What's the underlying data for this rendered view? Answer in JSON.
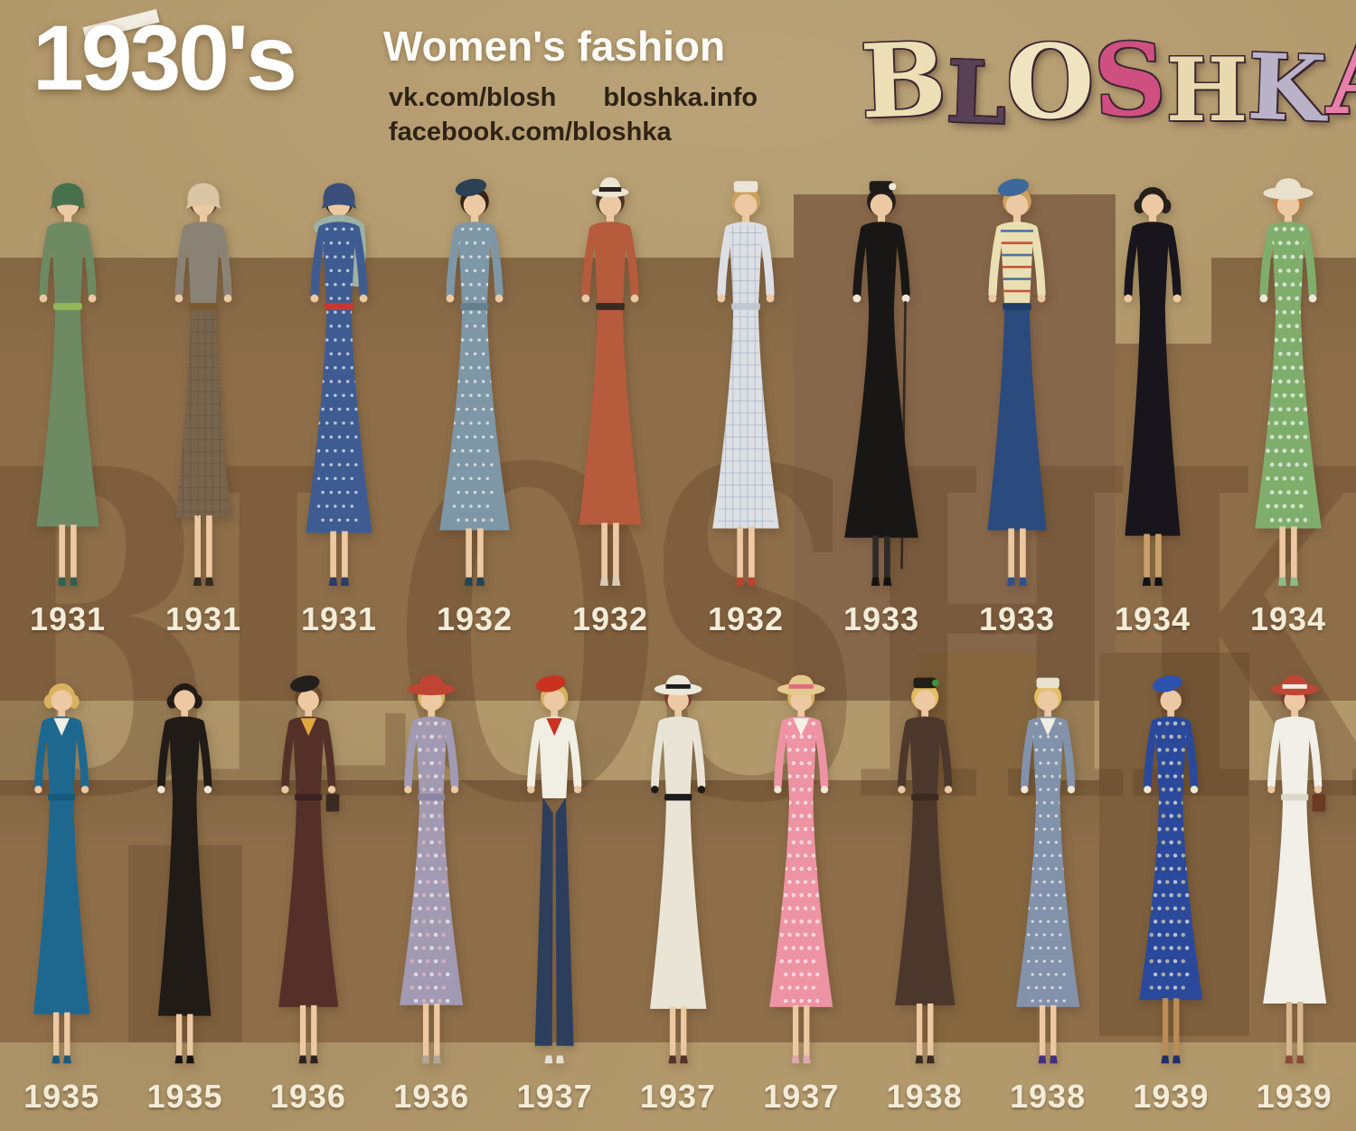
{
  "header": {
    "title": "1930's",
    "subtitle": "Women's fashion",
    "links": [
      "vk.com/blosh",
      "bloshka.info",
      "facebook.com/bloshka"
    ]
  },
  "brand": {
    "name": "BLOSHKA",
    "letters": [
      {
        "char": "B",
        "color": "#ecdfb6"
      },
      {
        "char": "L",
        "color": "#584055"
      },
      {
        "char": "O",
        "color": "#f0e3c0"
      },
      {
        "char": "S",
        "color": "#cf4f81"
      },
      {
        "char": "H",
        "color": "#e8d9ae"
      },
      {
        "char": "K",
        "color": "#b9b2c8"
      },
      {
        "char": "A",
        "color": "#e87fa8"
      }
    ]
  },
  "watermark": "BLOSHKA",
  "palette": {
    "paper_light": "#b2996c",
    "paper_band": "#8e6e49",
    "paper_patch_dark": "#7d5f3d",
    "label_text": "#f3ecd9",
    "link_text": "#2f2316",
    "title_text": "#ffffff"
  },
  "rows": [
    {
      "name": "years 1931-1934",
      "figures": [
        {
          "year": "1931",
          "desc": "green dress with flounce sleeves, green sash and cloche hat",
          "hat": "cloche",
          "type": "dress",
          "pattern": "none",
          "hem": 388,
          "flare": 34,
          "colors": {
            "hat": "#47704c",
            "hair": "#6b4a2c",
            "dress": "#6d8a62",
            "belt": "#92b75a",
            "shoes": "#33604f"
          }
        },
        {
          "year": "1931",
          "desc": "grey belted jacket with checked tweed skirt and beige cloche",
          "hat": "cloche",
          "type": "dress",
          "pattern": "check",
          "patternArea": "skirt",
          "hem": 378,
          "flare": 30,
          "colors": {
            "hat": "#d9c4a4",
            "hair": "#5a3c26",
            "top": "#8b8276",
            "dress": "#8b8276",
            "skirt": "#77644c",
            "accent": "#5c4c38",
            "belt": "#7b5a32",
            "shoes": "#352a20"
          }
        },
        {
          "year": "1931",
          "desc": "navy polka-dot dress with red belt and grey fur stole",
          "hat": "cloche",
          "type": "dress",
          "pattern": "dots",
          "hem": 395,
          "flare": 36,
          "colors": {
            "hat": "#3c4e7a",
            "hair": "#3a2c20",
            "dress": "#3e5c92",
            "belt": "#c9372c",
            "shoes": "#2c3a68",
            "stole": "#9cb2a4"
          }
        },
        {
          "year": "1932",
          "desc": "slate-blue ruffled polka-dot dress with tiered skirt and navy hat",
          "hat": "beret",
          "type": "dress",
          "pattern": "dots",
          "hem": 392,
          "flare": 38,
          "colors": {
            "hat": "#2c4054",
            "hair": "#352418",
            "dress": "#7e97a6",
            "belt": "#667f90",
            "shoes": "#214653"
          }
        },
        {
          "year": "1932",
          "desc": "rust tweed coat and skirt with white fedora",
          "hat": "fedora",
          "type": "dress",
          "pattern": "none",
          "hem": 386,
          "flare": 34,
          "colors": {
            "hat": "#eee6d4",
            "hatband": "#26211c",
            "hair": "#4a3424",
            "dress": "#b65c3d",
            "belt": "#3c2a20",
            "shoes": "#d8ccb8"
          }
        },
        {
          "year": "1932",
          "desc": "pale windowpane-check wrap dress with white cap and red shoes",
          "hat": "pillbox",
          "type": "dress",
          "pattern": "check",
          "hem": 390,
          "flare": 36,
          "colors": {
            "hat": "#eae5d7",
            "hair": "#caa05a",
            "dress": "#dcdfe3",
            "accent": "#8fa3c0",
            "belt": "#c2c8d2",
            "shoes": "#b8432f"
          }
        },
        {
          "year": "1933",
          "desc": "long black coat with fur trim, white gloves and walking cane",
          "hat": "pillbox",
          "type": "dress",
          "pattern": "none",
          "hem": 400,
          "flare": 40,
          "cane": true,
          "colors": {
            "hat": "#1d1b19",
            "hatAccent": "#efe8d8",
            "hair": "#241c16",
            "dress": "#191715",
            "shoes": "#141210",
            "hands": "#efe8d8",
            "legs": "#2e2a28"
          }
        },
        {
          "year": "1933",
          "desc": "striped blouse with high-waisted navy skirt and blue beret",
          "hat": "beret",
          "type": "dress",
          "pattern": "stripes",
          "hem": 392,
          "flare": 32,
          "colors": {
            "hat": "#3e689c",
            "hair": "#caa05a",
            "top": "#eadfb2",
            "dress": "#eadfb2",
            "skirt": "#2b4a7e",
            "accent": "#3e689c",
            "accent2": "#bf4a31",
            "belt": "#243e6a",
            "shoes": "#31518a"
          }
        },
        {
          "year": "1934",
          "desc": "black satin dress with draped sleeves",
          "hat": "none",
          "type": "dress",
          "pattern": "none",
          "hem": 398,
          "flare": 30,
          "colors": {
            "hair": "#272019",
            "dress": "#18161c",
            "shoes": "#131118",
            "legs": "#c9a06a"
          }
        },
        {
          "year": "1934",
          "desc": "green printed ruffle dress with white brimmed hat",
          "hat": "brim",
          "type": "dress",
          "pattern": "floral",
          "hem": 390,
          "flare": 36,
          "colors": {
            "hat": "#e9e1cb",
            "hair": "#c57a3a",
            "dress": "#7fae6c",
            "accent": "#ffffff",
            "shoes": "#8cbd88",
            "hands": "#efe8d8"
          }
        }
      ]
    },
    {
      "name": "years 1935-1939",
      "figures": [
        {
          "year": "1935",
          "desc": "teal dress with bolero and white ruffle jabot",
          "hat": "none",
          "type": "dress",
          "pattern": "none",
          "hem": 396,
          "flare": 32,
          "colors": {
            "hair": "#d9b260",
            "dress": "#1e6890",
            "collar": "#f2efe4",
            "belt": "#175a7c",
            "shoes": "#1b5a7c"
          }
        },
        {
          "year": "1935",
          "desc": "black tailored suit with wide collar and peplum",
          "hat": "none",
          "type": "dress",
          "pattern": "none",
          "hem": 398,
          "flare": 30,
          "colors": {
            "hair": "#241a14",
            "dress": "#201b17",
            "shoes": "#171210",
            "hands": "#efe8d8"
          }
        },
        {
          "year": "1936",
          "desc": "maroon belted coat-dress with tilted black beret",
          "hat": "beret",
          "type": "dress",
          "pattern": "none",
          "hem": 388,
          "flare": 34,
          "colors": {
            "hat": "#23201d",
            "hair": "#6b4a2c",
            "dress": "#553028",
            "collar": "#e0a93e",
            "belt": "#3c2220",
            "shoes": "#2c2320",
            "bag": "#3a2a22"
          }
        },
        {
          "year": "1936",
          "desc": "lavender floral cape-sleeve dress with red sun hat",
          "hat": "brim",
          "type": "dress",
          "pattern": "floral",
          "hem": 386,
          "flare": 36,
          "colors": {
            "hat": "#c04434",
            "hair": "#d9b260",
            "dress": "#a29ab2",
            "accent": "#eabfc4",
            "belt": "#8c84a0",
            "shoes": "#b3a698"
          }
        },
        {
          "year": "1937",
          "desc": "navy sailor trousers and jacket with red kerchief",
          "hat": "beret",
          "type": "pants",
          "pattern": "none",
          "colors": {
            "hat": "#c8321f",
            "hair": "#d9b260",
            "top": "#f1eee4",
            "dress": "#f1eee4",
            "skirt": "#2c3e5c",
            "collar": "#c8321f",
            "shoes": "#e6ded0"
          }
        },
        {
          "year": "1937",
          "desc": "white suit with black trim, black gloves and white platter hat",
          "hat": "brim",
          "type": "dress",
          "pattern": "none",
          "hem": 390,
          "flare": 32,
          "colors": {
            "hat": "#ece8dc",
            "hatband": "#1b1b1b",
            "hair": "#7a3c28",
            "dress": "#e9e4d6",
            "belt": "#1b1b1b",
            "shoes": "#54342a",
            "hands": "#1d1b19"
          }
        },
        {
          "year": "1937",
          "desc": "pink floral dress with white collar and straw hat",
          "hat": "brim",
          "type": "dress",
          "pattern": "floral",
          "hem": 388,
          "flare": 36,
          "colors": {
            "hat": "#e5c98e",
            "hatband": "#e06a80",
            "hair": "#d9b260",
            "dress": "#ee93a3",
            "accent": "#ffffff",
            "collar": "#f4f1e8",
            "shoes": "#e0a8ae",
            "hands": "#efe8d8"
          }
        },
        {
          "year": "1938",
          "desc": "brown puff-shoulder suit with black tilt hat",
          "hat": "pillbox",
          "type": "dress",
          "pattern": "none",
          "hem": 386,
          "flare": 34,
          "colors": {
            "hat": "#211e17",
            "hatAccent": "#3f8f3f",
            "hair": "#e3bd5e",
            "dress": "#4b372b",
            "belt": "#3a2a20",
            "shoes": "#382a20"
          }
        },
        {
          "year": "1938",
          "desc": "blue-grey polka-dot dress with white collar and halo hat",
          "hat": "pillbox",
          "type": "dress",
          "pattern": "dots",
          "hem": 388,
          "flare": 36,
          "colors": {
            "hat": "#e7e1cf",
            "hair": "#e3bd5e",
            "dress": "#8292aa",
            "collar": "#f0ede2",
            "shoes": "#43307e",
            "hands": "#efe8d8"
          }
        },
        {
          "year": "1939",
          "desc": "royal-blue floral dress with puff sleeves and blue beret",
          "hat": "beret",
          "type": "dress",
          "pattern": "floral",
          "hem": 380,
          "flare": 36,
          "colors": {
            "hat": "#2d52ae",
            "hair": "#6b4a2c",
            "dress": "#2b499b",
            "accent": "#f0e2a0",
            "shoes": "#202f6a",
            "legs": "#bb8c55",
            "hands": "#efe8d8"
          }
        },
        {
          "year": "1939",
          "desc": "white shirtwaist dress with red brimmed hat and brown handbag",
          "hat": "brim",
          "type": "dress",
          "pattern": "none",
          "hem": 384,
          "flare": 36,
          "colors": {
            "hat": "#bd4734",
            "hatband": "#f0ede4",
            "hair": "#7a3c28",
            "dress": "#f1efe7",
            "belt": "#dcd8cb",
            "shoes": "#8a4938",
            "bag": "#6b3a22",
            "legs": "#d9b890"
          }
        }
      ]
    }
  ]
}
